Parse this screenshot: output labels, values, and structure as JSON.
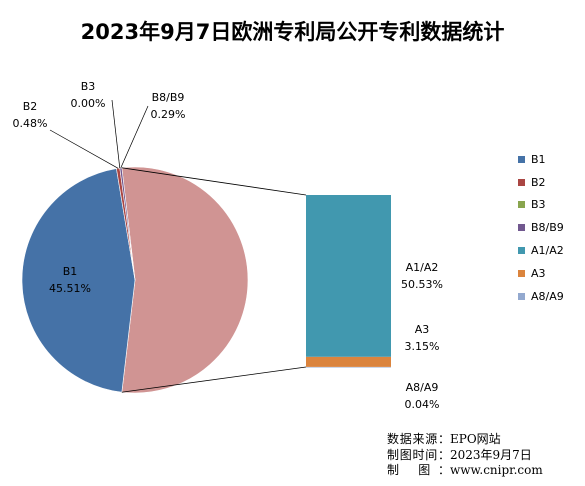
{
  "chart_data": {
    "type": "pie",
    "title": "2023年9月7日欧洲专利局公开专利数据统计",
    "slices": [
      {
        "name": "B1",
        "value": 45.51,
        "label": "45.51%",
        "color": "#4572a7"
      },
      {
        "name": "B2",
        "value": 0.48,
        "label": "0.48%",
        "color": "#aa4643"
      },
      {
        "name": "B3",
        "value": 0.0,
        "label": "0.00%",
        "color": "#89a54e"
      },
      {
        "name": "B8/B9",
        "value": 0.29,
        "label": "0.29%",
        "color": "#71588f"
      },
      {
        "name": "A",
        "value": 53.72,
        "color": "#d09493",
        "expanded_into_bar": true
      }
    ],
    "bar_of_pie": [
      {
        "name": "A1/A2",
        "value": 50.53,
        "label": "50.53%",
        "color": "#4198af"
      },
      {
        "name": "A3",
        "value": 3.15,
        "label": "3.15%",
        "color": "#db843d"
      },
      {
        "name": "A8/A9",
        "value": 0.04,
        "label": "0.04%",
        "color": "#93a9cf"
      }
    ],
    "legend": {
      "position": "right",
      "items": [
        {
          "name": "B1",
          "color": "#4572a7"
        },
        {
          "name": "B2",
          "color": "#aa4643"
        },
        {
          "name": "B3",
          "color": "#89a54e"
        },
        {
          "name": "B8/B9",
          "color": "#71588f"
        },
        {
          "name": "A1/A2",
          "color": "#4198af"
        },
        {
          "name": "A3",
          "color": "#db843d"
        },
        {
          "name": "A8/A9",
          "color": "#93a9cf"
        }
      ]
    }
  },
  "source": {
    "source_label": "数据来源：",
    "source_value": "EPO网站",
    "time_label": "制图时间：",
    "time_value": "2023年9月7日",
    "maker_label": "制 图：",
    "maker_value": "www.cnipr.com"
  }
}
